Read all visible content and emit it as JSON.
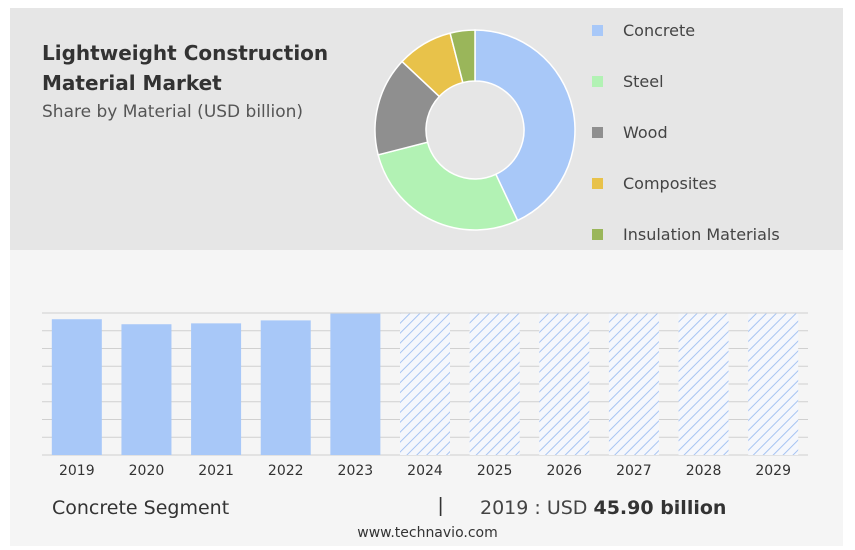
{
  "header": {
    "title_line1": "Lightweight Construction",
    "title_line2": "Material Market",
    "subtitle": "Share by Material (USD billion)"
  },
  "chart_data": [
    {
      "type": "pie",
      "variant": "donut",
      "categories": [
        "Concrete",
        "Steel",
        "Wood",
        "Composites",
        "Insulation Materials"
      ],
      "values": [
        43,
        28,
        16,
        9,
        4
      ],
      "colors": [
        "#a8c8f8",
        "#b2f2b4",
        "#8f8f8f",
        "#e8c24a",
        "#9ab65a"
      ],
      "legend": "right"
    },
    {
      "type": "bar",
      "categories": [
        "2019",
        "2020",
        "2021",
        "2022",
        "2023",
        "2024",
        "2025",
        "2026",
        "2027",
        "2028",
        "2029"
      ],
      "values": [
        45.9,
        44.2,
        44.5,
        45.5,
        47.8,
        47.8,
        47.8,
        47.8,
        47.8,
        47.8,
        47.8
      ],
      "forecast_from": "2024",
      "ylim": [
        0,
        48
      ],
      "grid": true,
      "color": "#a8c8f8",
      "hatch_color": "#9fbff2"
    }
  ],
  "footer": {
    "segment": "Concrete Segment",
    "separator": "|",
    "value_prefix": "2019 : USD",
    "value_bold": "45.90 billion",
    "source": "www.technavio.com"
  }
}
